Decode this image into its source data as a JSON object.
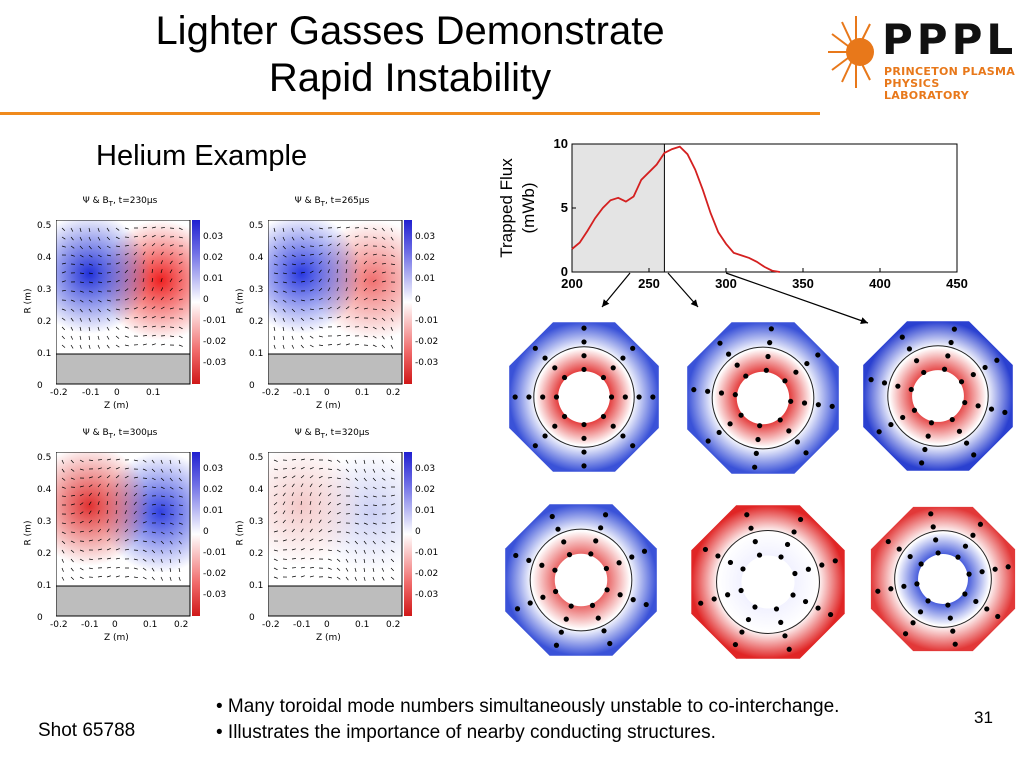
{
  "slide": {
    "title_line1": "Lighter Gasses Demonstrate",
    "title_line2": "Rapid Instability",
    "subtitle": "Helium Example",
    "shot": "Shot 65788",
    "page_number": "31",
    "bullets": [
      "• Many toroidal mode numbers simultaneously unstable to co-interchange.",
      "• Illustrates the importance of nearby conducting structures."
    ]
  },
  "logo": {
    "name": "PPPL",
    "line1": "PRINCETON PLASMA",
    "line2": "PHYSICS LABORATORY",
    "color": "#e8781a"
  },
  "panels": [
    {
      "title": "Ψ & B",
      "sub": "T",
      "time": ", t=230μs"
    },
    {
      "title": "Ψ & B",
      "sub": "T",
      "time": ", t=265μs"
    },
    {
      "title": "Ψ & B",
      "sub": "T",
      "time": ", t=300μs"
    },
    {
      "title": "Ψ & B",
      "sub": "T",
      "time": ", t=320μs"
    }
  ],
  "panel_axes": {
    "ylabel": "R (m)",
    "xlabel": "Z (m)",
    "yticks": [
      "0.5",
      "0.4",
      "0.3",
      "0.2",
      "0.1",
      "0"
    ],
    "xticks_a": [
      "-0.2",
      "-0.1",
      "0",
      "0.1"
    ],
    "xticks_b": [
      "-0.2",
      "-0.1",
      "0",
      "0.1",
      "0.2"
    ],
    "cbar_ticks": [
      "0.03",
      "0.02",
      "0.01",
      "0",
      "-0.01",
      "-0.02",
      "-0.03"
    ]
  },
  "chart_data": {
    "type": "line",
    "ylabel_line1": "Trapped Flux",
    "ylabel_line2": "(mWb)",
    "xticks": [
      "200",
      "250",
      "300",
      "350",
      "400",
      "450"
    ],
    "yticks": [
      "0",
      "5",
      "10"
    ],
    "xlim": [
      200,
      450
    ],
    "ylim": [
      0,
      10
    ],
    "shaded_region": [
      200,
      260
    ],
    "marker_x": 260,
    "series": [
      {
        "color": "#d42020",
        "x": [
          200,
          205,
          210,
          215,
          220,
          225,
          230,
          235,
          240,
          245,
          250,
          255,
          260,
          265,
          270,
          275,
          280,
          285,
          290,
          295,
          300,
          305,
          310,
          315,
          320,
          325,
          330,
          335
        ],
        "y": [
          1.8,
          2.3,
          3.2,
          4.2,
          5.0,
          5.6,
          5.8,
          5.5,
          5.9,
          7.2,
          7.8,
          8.4,
          9.3,
          9.6,
          9.8,
          9.2,
          8.0,
          6.4,
          4.6,
          3.1,
          2.2,
          1.5,
          1.3,
          1.1,
          0.8,
          0.4,
          0.1,
          0.0
        ]
      }
    ]
  },
  "mode_images": {
    "count": 6
  }
}
